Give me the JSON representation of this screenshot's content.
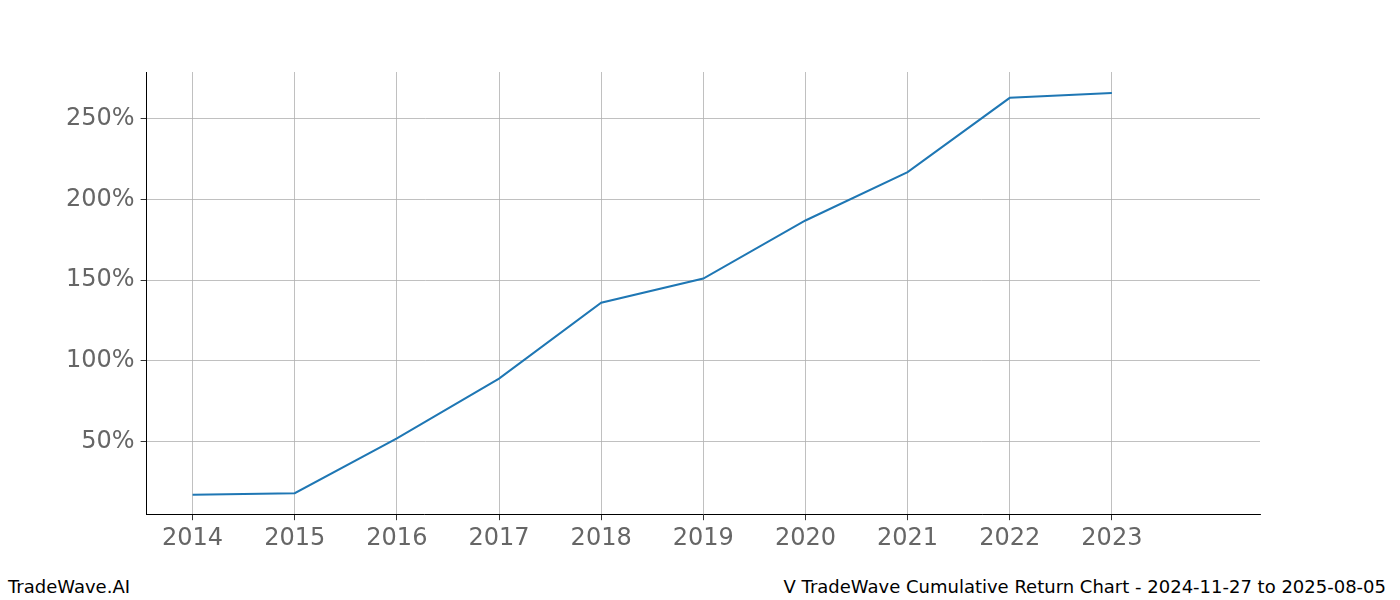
{
  "chart_data": {
    "type": "line",
    "x": [
      2014,
      2015,
      2016,
      2017,
      2018,
      2019,
      2020,
      2021,
      2022,
      2023
    ],
    "values": [
      17,
      18,
      52,
      89,
      136,
      151,
      187,
      217,
      263,
      266
    ],
    "color": "#1f77b4",
    "xlim": [
      2013.55,
      2024.45
    ],
    "xticks": [
      2014,
      2015,
      2016,
      2017,
      2018,
      2019,
      2020,
      2021,
      2022,
      2023
    ],
    "ylim": [
      5,
      279
    ],
    "yticks": [
      {
        "value": 50,
        "label": "50%"
      },
      {
        "value": 100,
        "label": "100%"
      },
      {
        "value": 150,
        "label": "150%"
      },
      {
        "value": 200,
        "label": "200%"
      },
      {
        "value": 250,
        "label": "250%"
      }
    ],
    "grid": true,
    "annotations": [
      "TradeWave.AI",
      "V TradeWave Cumulative Return Chart - 2024-11-27 to 2025-08-05"
    ]
  }
}
